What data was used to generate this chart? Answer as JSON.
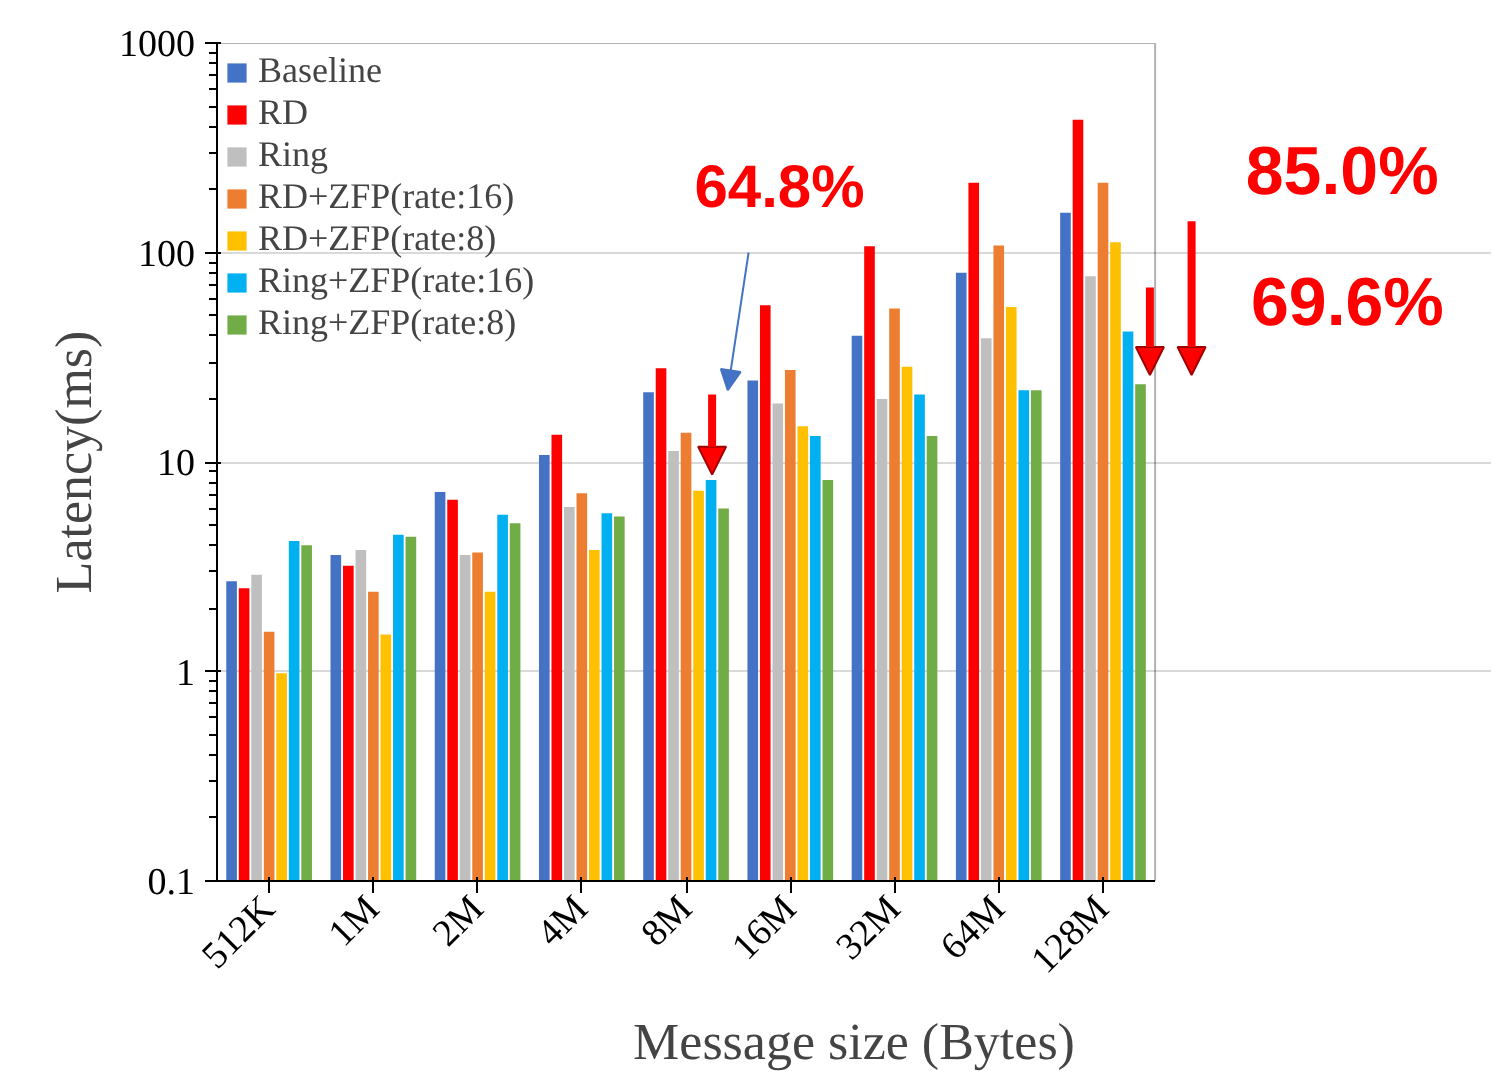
{
  "chart_data": {
    "type": "bar",
    "xlabel": "Message size (Bytes)",
    "ylabel": "Latency(ms)",
    "categories": [
      "512K",
      "1M",
      "2M",
      "4M",
      "8M",
      "16M",
      "32M",
      "64M",
      "128M"
    ],
    "log": true,
    "ylim": [
      0.1,
      1000
    ],
    "yticks": [
      0.1,
      1,
      10,
      100,
      1000
    ],
    "grid": "y",
    "legend": "top left",
    "series": [
      {
        "name": "Baseline",
        "color": "#4472c4",
        "values": [
          2.7,
          3.6,
          7.2,
          10.8,
          21.5,
          24.5,
          40,
          80,
          155
        ]
      },
      {
        "name": "RD",
        "color": "#ff0000",
        "values": [
          2.5,
          3.2,
          6.6,
          13.5,
          28,
          56,
          107,
          215,
          430
        ]
      },
      {
        "name": "Ring",
        "color": "#bfbfbf",
        "values": [
          2.9,
          3.8,
          3.6,
          6.1,
          11.3,
          19,
          20,
          39,
          77
        ]
      },
      {
        "name": "RD+ZFP(rate:16)",
        "color": "#ed7d31",
        "values": [
          1.55,
          2.4,
          3.7,
          7.1,
          13.8,
          27.5,
          54,
          108,
          215
        ]
      },
      {
        "name": "RD+ZFP(rate:8)",
        "color": "#ffc000",
        "values": [
          0.98,
          1.5,
          2.4,
          3.8,
          7.3,
          14.8,
          28.5,
          55,
          112
        ]
      },
      {
        "name": "Ring+ZFP(rate:16)",
        "color": "#00b0f0",
        "values": [
          4.2,
          4.5,
          5.6,
          5.7,
          8.2,
          13.3,
          21,
          22,
          42
        ]
      },
      {
        "name": "Ring+ZFP(rate:8)",
        "color": "#70ad47",
        "values": [
          4.0,
          4.4,
          5.1,
          5.5,
          6.0,
          8.2,
          13.3,
          22,
          23.5
        ]
      }
    ],
    "annotations": [
      "64.8%",
      "85.0%",
      "69.6%"
    ]
  }
}
